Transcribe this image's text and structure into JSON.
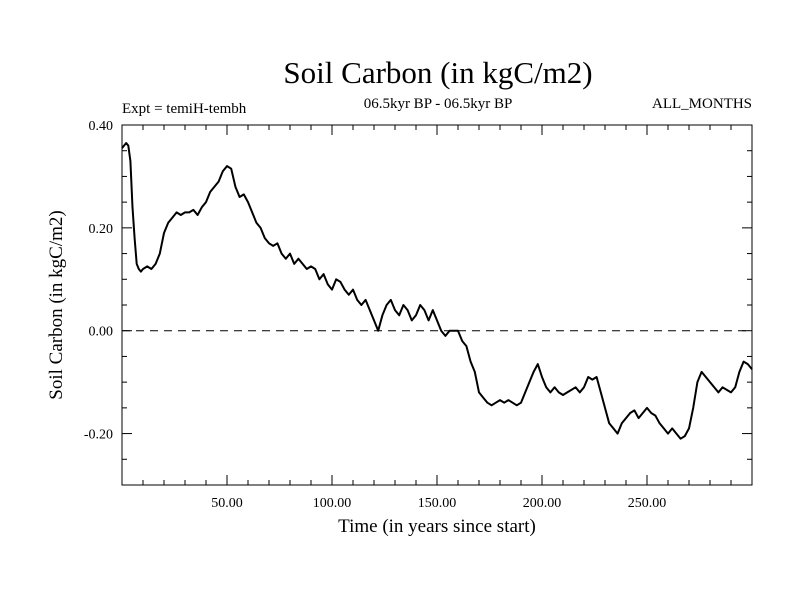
{
  "chart_data": {
    "type": "line",
    "title": "Soil Carbon (in kgC/m2)",
    "subtitle_left": "Expt = temiH-tembh",
    "subtitle_center": "06.5kyr BP - 06.5kyr BP",
    "subtitle_right": "ALL_MONTHS",
    "xlabel": "Time (in years since start)",
    "ylabel": "Soil Carbon (in kgC/m2)",
    "xlim": [
      0,
      300
    ],
    "ylim": [
      -0.3,
      0.4
    ],
    "xticks": [
      50,
      100,
      150,
      200,
      250
    ],
    "xtick_labels": [
      "50.00",
      "100.00",
      "150.00",
      "200.00",
      "250.00"
    ],
    "yticks": [
      -0.2,
      0.0,
      0.2,
      0.4
    ],
    "ytick_labels": [
      "-0.20",
      "0.00",
      "0.20",
      "0.40"
    ],
    "reference_line": {
      "y": 0.0,
      "style": "dashed"
    },
    "series": [
      {
        "name": "Soil Carbon",
        "color": "#000000",
        "x": [
          0,
          2,
          3,
          4,
          5,
          6,
          7,
          8,
          9,
          10,
          12,
          14,
          16,
          18,
          20,
          22,
          24,
          26,
          28,
          30,
          32,
          34,
          36,
          38,
          40,
          42,
          44,
          46,
          48,
          50,
          52,
          54,
          56,
          58,
          60,
          62,
          64,
          66,
          68,
          70,
          72,
          74,
          76,
          78,
          80,
          82,
          84,
          86,
          88,
          90,
          92,
          94,
          96,
          98,
          100,
          102,
          104,
          106,
          108,
          110,
          112,
          114,
          116,
          118,
          120,
          122,
          124,
          126,
          128,
          130,
          132,
          134,
          136,
          138,
          140,
          142,
          144,
          146,
          148,
          150,
          152,
          154,
          156,
          158,
          160,
          162,
          164,
          166,
          168,
          170,
          172,
          174,
          176,
          178,
          180,
          182,
          184,
          186,
          188,
          190,
          192,
          194,
          196,
          198,
          200,
          202,
          204,
          206,
          208,
          210,
          212,
          214,
          216,
          218,
          220,
          222,
          224,
          226,
          228,
          230,
          232,
          234,
          236,
          238,
          240,
          242,
          244,
          246,
          248,
          250,
          252,
          254,
          256,
          258,
          260,
          262,
          264,
          266,
          268,
          270,
          272,
          274,
          276,
          278,
          280,
          282,
          284,
          286,
          288,
          290,
          292,
          294,
          296,
          298,
          300
        ],
        "y": [
          0.355,
          0.365,
          0.36,
          0.33,
          0.24,
          0.18,
          0.13,
          0.12,
          0.115,
          0.12,
          0.125,
          0.12,
          0.13,
          0.15,
          0.19,
          0.21,
          0.22,
          0.23,
          0.225,
          0.23,
          0.23,
          0.235,
          0.225,
          0.24,
          0.25,
          0.27,
          0.28,
          0.29,
          0.31,
          0.32,
          0.315,
          0.28,
          0.26,
          0.265,
          0.25,
          0.23,
          0.21,
          0.2,
          0.18,
          0.17,
          0.165,
          0.17,
          0.15,
          0.14,
          0.15,
          0.13,
          0.14,
          0.13,
          0.12,
          0.125,
          0.12,
          0.1,
          0.11,
          0.09,
          0.08,
          0.1,
          0.095,
          0.08,
          0.07,
          0.08,
          0.06,
          0.05,
          0.06,
          0.04,
          0.02,
          0.0,
          0.03,
          0.05,
          0.06,
          0.04,
          0.03,
          0.05,
          0.04,
          0.02,
          0.03,
          0.05,
          0.04,
          0.02,
          0.04,
          0.02,
          0.0,
          -0.01,
          0.0,
          0.0,
          0.0,
          -0.02,
          -0.03,
          -0.06,
          -0.08,
          -0.12,
          -0.13,
          -0.14,
          -0.145,
          -0.14,
          -0.135,
          -0.14,
          -0.135,
          -0.14,
          -0.145,
          -0.14,
          -0.12,
          -0.1,
          -0.08,
          -0.065,
          -0.09,
          -0.11,
          -0.12,
          -0.11,
          -0.12,
          -0.125,
          -0.12,
          -0.115,
          -0.11,
          -0.12,
          -0.11,
          -0.09,
          -0.095,
          -0.09,
          -0.12,
          -0.15,
          -0.18,
          -0.19,
          -0.2,
          -0.18,
          -0.17,
          -0.16,
          -0.155,
          -0.17,
          -0.16,
          -0.15,
          -0.16,
          -0.165,
          -0.18,
          -0.19,
          -0.2,
          -0.19,
          -0.2,
          -0.21,
          -0.205,
          -0.19,
          -0.15,
          -0.1,
          -0.08,
          -0.09,
          -0.1,
          -0.11,
          -0.12,
          -0.11,
          -0.115,
          -0.12,
          -0.11,
          -0.08,
          -0.06,
          -0.065,
          -0.075
        ]
      }
    ]
  }
}
